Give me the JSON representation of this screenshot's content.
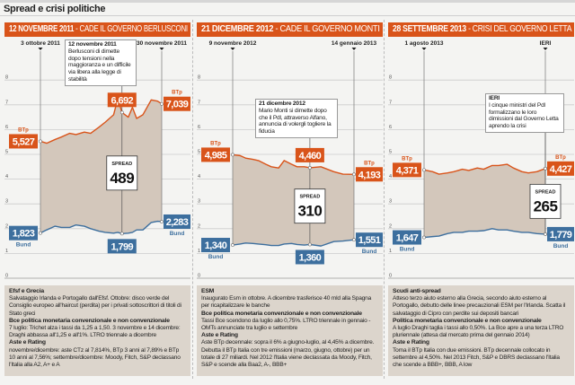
{
  "title": "Spread e crisi politiche",
  "colors": {
    "btp": "#d9541a",
    "bund": "#3d6f9e",
    "spread_area": "#d3c7bb",
    "header": "#d9541a",
    "notes_bg": "#dcd5cc"
  },
  "chart_data": [
    {
      "type": "area",
      "header_date": "12 NOVEMBRE 2011",
      "header_text": " - CADE IL GOVERNO BERLUSCONI",
      "start_label": "3 ottobre 2011",
      "end_label": "30 novembre 2011",
      "event_date": "2011-11-11",
      "annotation": {
        "title": "12 novembre 2011",
        "text": "Berlusconi di dimette dopo tensioni nella maggioranza e un difficile via libera alla legge di stabilità"
      },
      "y_ticks": [
        0,
        1,
        2,
        3,
        4,
        5,
        6,
        7,
        8
      ],
      "ylim": [
        0,
        8
      ],
      "series": [
        {
          "name": "BTp",
          "x": [
            "2011-10-03",
            "2011-10-06",
            "2011-10-10",
            "2011-10-13",
            "2011-10-17",
            "2011-10-20",
            "2011-10-24",
            "2011-10-27",
            "2011-10-31",
            "2011-11-03",
            "2011-11-07",
            "2011-11-09",
            "2011-11-11",
            "2011-11-14",
            "2011-11-16",
            "2011-11-18",
            "2011-11-21",
            "2011-11-23",
            "2011-11-25",
            "2011-11-28",
            "2011-11-30"
          ],
          "values": [
            5.527,
            5.45,
            5.6,
            5.7,
            5.85,
            5.8,
            5.9,
            5.85,
            6.1,
            6.3,
            6.6,
            7.25,
            6.692,
            6.5,
            6.9,
            6.45,
            6.6,
            6.9,
            7.2,
            7.15,
            7.039
          ]
        },
        {
          "name": "Bund",
          "x": [
            "2011-10-03",
            "2011-10-06",
            "2011-10-10",
            "2011-10-13",
            "2011-10-17",
            "2011-10-20",
            "2011-10-24",
            "2011-10-27",
            "2011-10-31",
            "2011-11-03",
            "2011-11-07",
            "2011-11-09",
            "2011-11-11",
            "2011-11-14",
            "2011-11-16",
            "2011-11-18",
            "2011-11-21",
            "2011-11-23",
            "2011-11-25",
            "2011-11-28",
            "2011-11-30"
          ],
          "values": [
            1.823,
            1.95,
            2.1,
            2.05,
            2.05,
            2.15,
            2.1,
            2.0,
            1.9,
            1.85,
            1.82,
            1.85,
            1.799,
            1.82,
            1.85,
            1.95,
            1.95,
            2.1,
            2.25,
            2.3,
            2.283
          ]
        }
      ],
      "callouts": {
        "btp_label": "BTp",
        "bund_label": "Bund",
        "btp_start": "5,527",
        "btp_event": "6,692",
        "btp_end": "7,039",
        "bund_start": "1,823",
        "bund_event": "1,799",
        "bund_end": "2,283",
        "spread_label": "SPREAD",
        "spread": "489"
      },
      "notes": [
        {
          "heading": "Efsf e Grecia",
          "text": "Salvataggio Irlanda e Portogallo dall'Efsf. Ottobre: disco verde del Consiglio europeo all'haircut (perdita) per i privati sottoscrittori di titoli di Stato greci"
        },
        {
          "heading": "Bce politica monetaria convenzionale e non convenzionale",
          "text": "7 luglio: Trichet alza i tassi da 1,25 a 1,50. 3 novembre e 14 dicembre: Draghi abbassa all'1,25 e all'1%. LTRO triennale a dicembre"
        },
        {
          "heading": "Aste e Rating",
          "text": "novembre/dicembre: aste CTz al 7,814%, BTp 3 anni al 7,89% e BTp 10 anni al 7,56%; settembre/dicembre: Moody, Fitch, S&P declassano l'Italia alla A2, A+ e A"
        }
      ]
    },
    {
      "type": "area",
      "header_date": "21 DICEMBRE 2012",
      "header_text": " - CADE IL GOVERNO MONTI",
      "start_label": "9 novembre 2012",
      "end_label": "14 gennaio 2013",
      "event_date": "2012-12-21",
      "annotation": {
        "title": "21 dicembre 2012",
        "text": "Mario Monti si dimette dopo che il Pdl, attraverso Alfano, annuncia di volergli togliere la fiducia"
      },
      "y_ticks": [
        0,
        1,
        2,
        3,
        4,
        5,
        6,
        7,
        8
      ],
      "ylim": [
        0,
        8
      ],
      "series": [
        {
          "name": "BTp",
          "x": [
            "2012-11-09",
            "2012-11-13",
            "2012-11-16",
            "2012-11-20",
            "2012-11-23",
            "2012-11-27",
            "2012-11-30",
            "2012-12-04",
            "2012-12-07",
            "2012-12-11",
            "2012-12-14",
            "2012-12-18",
            "2012-12-21",
            "2012-12-27",
            "2013-01-03",
            "2013-01-08",
            "2013-01-14"
          ],
          "values": [
            4.985,
            4.95,
            4.85,
            4.8,
            4.75,
            4.6,
            4.5,
            4.45,
            4.75,
            4.6,
            4.5,
            4.5,
            4.46,
            4.5,
            4.3,
            4.2,
            4.193
          ]
        },
        {
          "name": "Bund",
          "x": [
            "2012-11-09",
            "2012-11-13",
            "2012-11-16",
            "2012-11-20",
            "2012-11-23",
            "2012-11-27",
            "2012-11-30",
            "2012-12-04",
            "2012-12-07",
            "2012-12-11",
            "2012-12-14",
            "2012-12-18",
            "2012-12-21",
            "2012-12-27",
            "2013-01-03",
            "2013-01-08",
            "2013-01-14"
          ],
          "values": [
            1.34,
            1.38,
            1.42,
            1.4,
            1.38,
            1.35,
            1.32,
            1.32,
            1.38,
            1.4,
            1.36,
            1.34,
            1.36,
            1.3,
            1.48,
            1.5,
            1.551
          ]
        }
      ],
      "callouts": {
        "btp_label": "BTp",
        "bund_label": "Bund",
        "btp_start": "4,985",
        "btp_event": "4,460",
        "btp_end": "4,193",
        "bund_start": "1,340",
        "bund_event": "1,360",
        "bund_end": "1,551",
        "spread_label": "SPREAD",
        "spread": "310"
      },
      "notes": [
        {
          "heading": "ESM",
          "text": "Inaugurato Esm in ottobre. A dicembre trasferisce 40 mld alla Spagna per ricapitalizzare le banche"
        },
        {
          "heading": "Bce politica monetaria convenzionale e non convenzionale",
          "text": "Tassi Bce scendono da luglio allo 0,75%. LTRO triennale in gennaio - OMTs annunciate tra luglio e settembre"
        },
        {
          "heading": "Aste e Rating",
          "text": "Aste BTp decennale: sopra il 6% a giugno-luglio, al 4,45% a dicembre. Debutta il BTp Italia con tre emissioni (marzo, giugno, ottobre) per un totale di 27 miliardi. Nel 2012 l'Italia viene declassata da Moody, Fitch, S&P e scende alla Baa2, A-, BBB+"
        }
      ]
    },
    {
      "type": "area",
      "header_date": "28 SETTEMBRE 2013",
      "header_text": " - CRISI DEL GOVERNO LETTA",
      "start_label": "1 agosto 2013",
      "end_label": "IERI",
      "event_date": "2013-09-27",
      "annotation": {
        "title": "IERI",
        "text": "I cinque ministri del Pdl formalizzano le loro dimissioni dal Governo Letta aprendo la crisi"
      },
      "y_ticks": [
        0,
        1,
        2,
        3,
        4,
        5,
        6,
        7,
        8
      ],
      "ylim": [
        0,
        8
      ],
      "series": [
        {
          "name": "BTp",
          "x": [
            "2013-08-01",
            "2013-08-05",
            "2013-08-08",
            "2013-08-12",
            "2013-08-15",
            "2013-08-19",
            "2013-08-22",
            "2013-08-26",
            "2013-08-29",
            "2013-09-02",
            "2013-09-05",
            "2013-09-09",
            "2013-09-12",
            "2013-09-16",
            "2013-09-19",
            "2013-09-23",
            "2013-09-27"
          ],
          "values": [
            4.371,
            4.3,
            4.2,
            4.25,
            4.3,
            4.4,
            4.35,
            4.45,
            4.4,
            4.55,
            4.55,
            4.6,
            4.45,
            4.3,
            4.25,
            4.3,
            4.427
          ]
        },
        {
          "name": "Bund",
          "x": [
            "2013-08-01",
            "2013-08-05",
            "2013-08-08",
            "2013-08-12",
            "2013-08-15",
            "2013-08-19",
            "2013-08-22",
            "2013-08-26",
            "2013-08-29",
            "2013-09-02",
            "2013-09-05",
            "2013-09-09",
            "2013-09-12",
            "2013-09-16",
            "2013-09-19",
            "2013-09-23",
            "2013-09-27"
          ],
          "values": [
            1.647,
            1.68,
            1.7,
            1.8,
            1.85,
            1.85,
            1.9,
            1.9,
            1.92,
            2.0,
            1.95,
            1.95,
            1.9,
            1.85,
            1.85,
            1.8,
            1.779
          ]
        }
      ],
      "callouts": {
        "btp_label": "BTp",
        "bund_label": "Bund",
        "btp_start": "4,371",
        "btp_end": "4,427",
        "bund_start": "1,647",
        "bund_end": "1,779",
        "spread_label": "SPREAD",
        "spread": "265"
      },
      "notes": [
        {
          "heading": "Scudi anti-spread",
          "text": "Atteso terzo aiuto esterno alla Grecia, secondo aiuto esterno al Portogallo, debutto delle linee precauzionali ESM per l'Irlanda. Scatta il salvataggio di Cipro con perdite sui depositi bancari"
        },
        {
          "heading": "Politica monetaria convenzionale e non convenzionale",
          "text": "A luglio Draghi taglia i tassi allo 0,50%. La Bce apre a una terza LTRO pluriennale (attesa dal mercato prima del gennaio 2014)"
        },
        {
          "heading": "Aste e Rating",
          "text": "Torna il BTp Italia con due emissioni. BTp decennale collocato in settembre al 4,50%. Nel 2013 Fitch, S&P e DBRS declassano l'Italia che scende a BBB+, BBB, A low"
        }
      ]
    }
  ]
}
